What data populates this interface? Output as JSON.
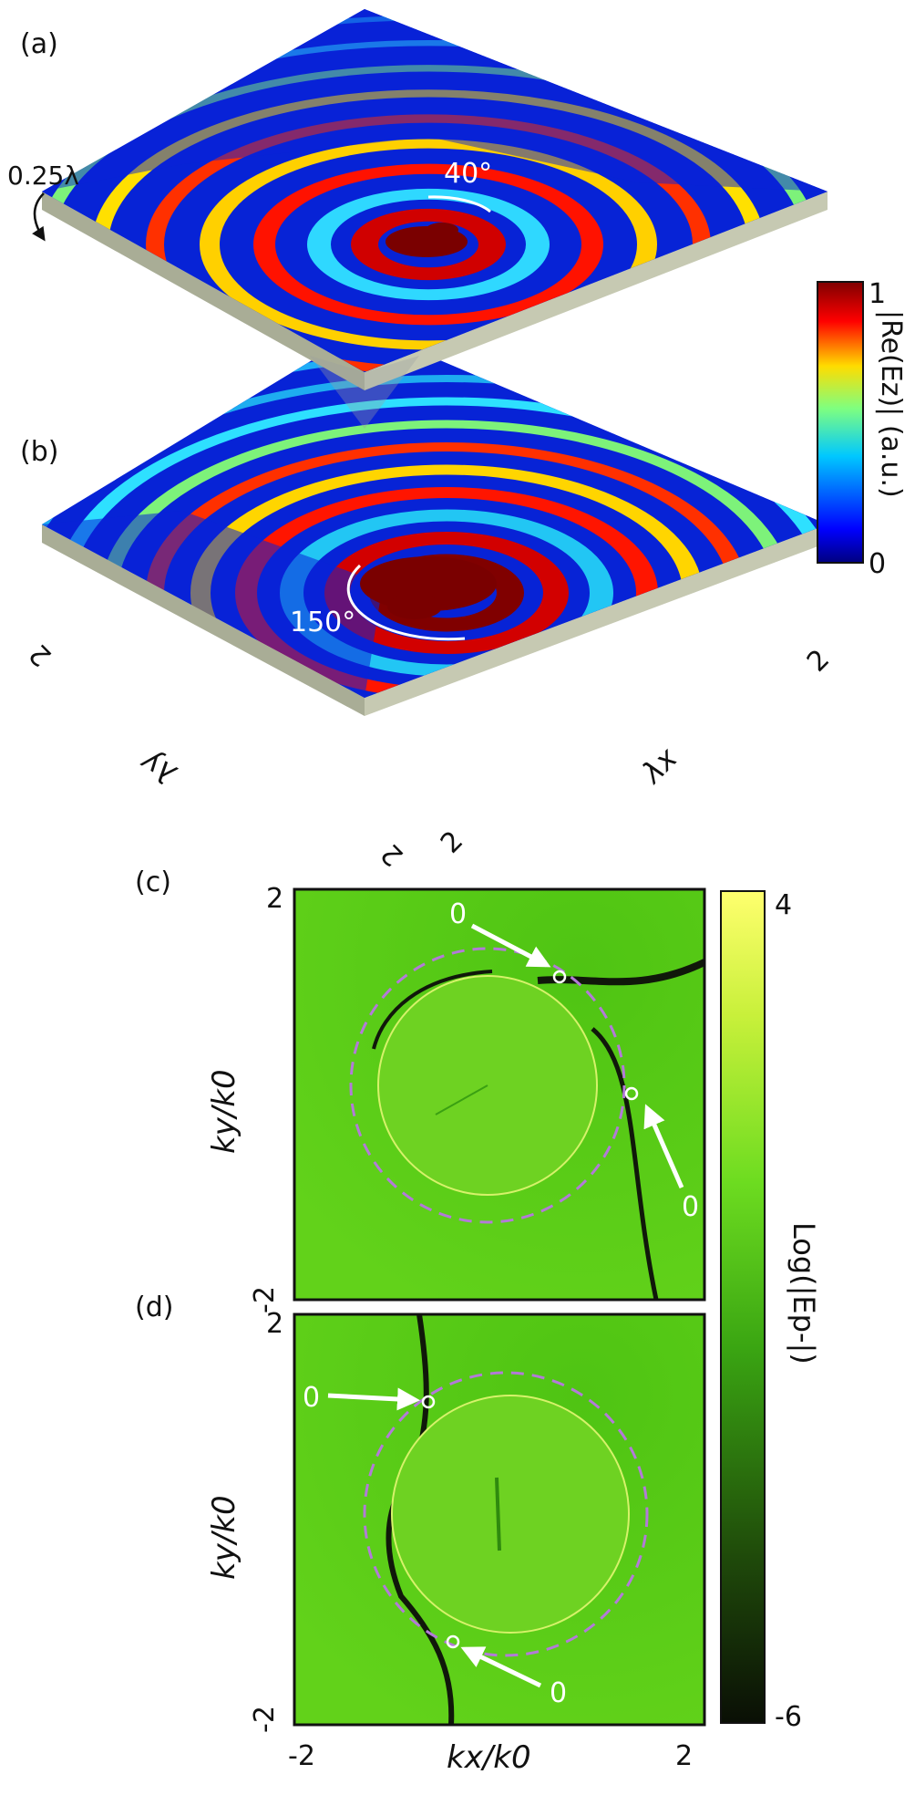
{
  "panels": {
    "a": "(a)",
    "b": "(b)",
    "c": "(c)",
    "d": "(d)"
  },
  "top": {
    "thickness_label": "0.25λ",
    "angle_a": "40°",
    "angle_b": "150°",
    "x_axis_label": "λx",
    "y_axis_label": "λy",
    "x_tick": "2",
    "y_tick": "2",
    "corner_tick_left": "2",
    "corner_tick_right": "2",
    "colorbar": {
      "label": "|Re(Ez)| (a.u.)",
      "max": "1",
      "min": "0",
      "colors": [
        "#00007f",
        "#0000ff",
        "#00c8ff",
        "#7fff7f",
        "#ffdc00",
        "#ff0000",
        "#7f0000"
      ]
    }
  },
  "bottom": {
    "x_label": "kx/k0",
    "y_label": "ky/k0",
    "x_min": "-2",
    "x_max": "2",
    "y_max": "2",
    "y_min": "-2",
    "zero_marker": "0",
    "colorbar": {
      "label": "Log(|Ep-|)",
      "max": "4",
      "min": "-6",
      "colors": [
        "#0a0f05",
        "#1f4a0a",
        "#3aa512",
        "#6ddc20",
        "#c8f03a",
        "#ffff6e"
      ]
    }
  }
}
